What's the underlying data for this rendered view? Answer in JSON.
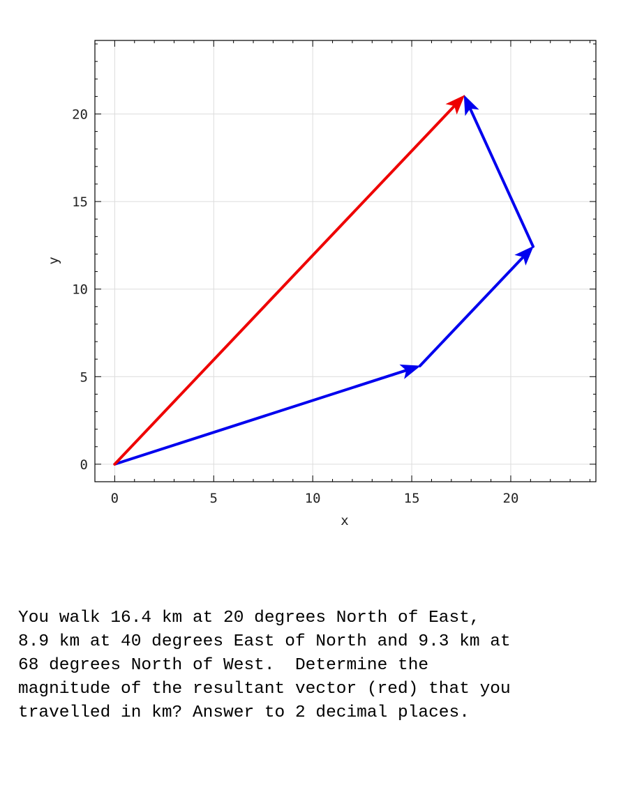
{
  "chart_data": {
    "type": "vector-diagram",
    "xlabel": "x",
    "ylabel": "y",
    "xlim": [
      -1,
      24.3
    ],
    "ylim": [
      -1,
      24.2
    ],
    "x_ticks": [
      0,
      5,
      10,
      15,
      20
    ],
    "y_ticks": [
      0,
      5,
      10,
      15,
      20
    ],
    "grid": true,
    "vectors": [
      {
        "role": "leg",
        "color": "#0000ee",
        "from": [
          0,
          0
        ],
        "to": [
          15.41,
          5.61
        ]
      },
      {
        "role": "leg",
        "color": "#0000ee",
        "from": [
          15.41,
          5.61
        ],
        "to": [
          21.13,
          12.43
        ]
      },
      {
        "role": "leg",
        "color": "#0000ee",
        "from": [
          21.13,
          12.43
        ],
        "to": [
          17.65,
          21.05
        ]
      },
      {
        "role": "resultant",
        "color": "#ee0000",
        "from": [
          0,
          0
        ],
        "to": [
          17.65,
          21.05
        ]
      }
    ]
  },
  "question": {
    "line1": "You walk 16.4 km at 20 degrees North of East,",
    "line2": "8.9 km at 40 degrees East of North and 9.3 km at",
    "line3": "68 degrees North of West.  Determine the",
    "line4": "magnitude of the resultant vector (red) that you",
    "line5": "travelled in km? Answer to 2 decimal places."
  }
}
